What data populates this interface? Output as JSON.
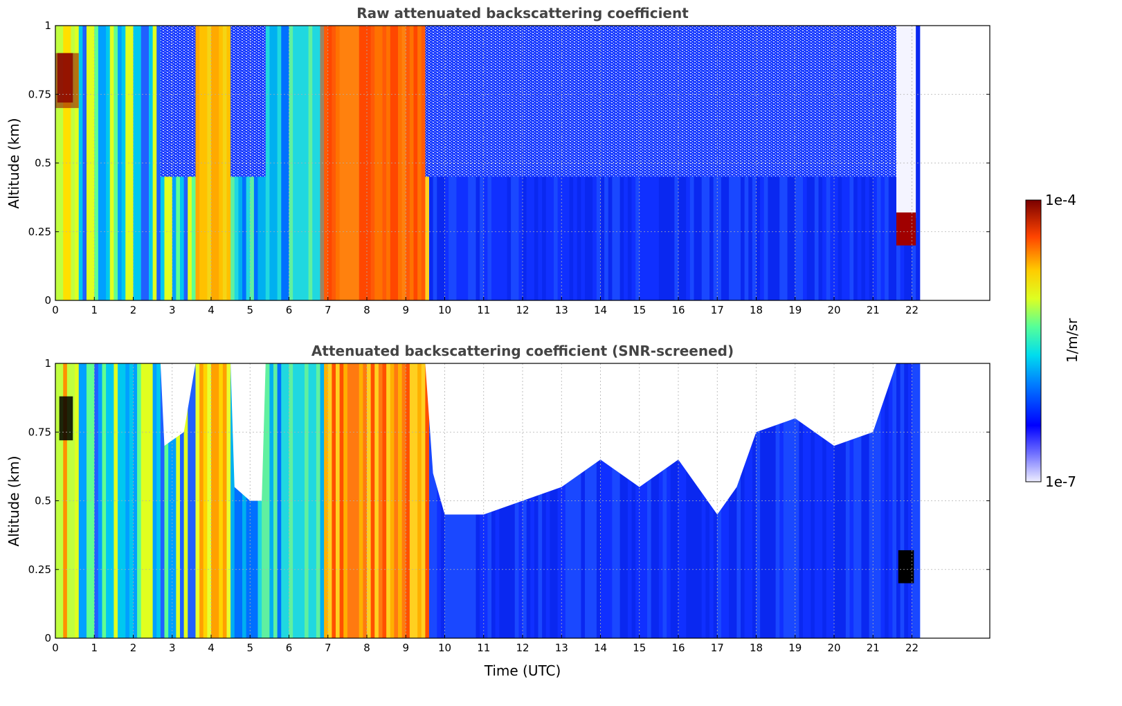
{
  "chart_data": [
    {
      "type": "heatmap",
      "title": "Raw attenuated backscattering coefficient",
      "xlabel": "",
      "ylabel": "Altitude (km)",
      "xlim": [
        0,
        24
      ],
      "ylim": [
        0,
        1
      ],
      "xticks": [
        "0",
        "1",
        "2",
        "3",
        "4",
        "5",
        "6",
        "7",
        "8",
        "9",
        "10",
        "11",
        "12",
        "13",
        "14",
        "15",
        "16",
        "17",
        "18",
        "19",
        "20",
        "21",
        "22"
      ],
      "yticks": [
        "0",
        "0.25",
        "0.5",
        "0.75",
        "1"
      ],
      "grid": true,
      "colorscale": "jet, log10 scale",
      "data_extent_x": [
        0,
        22.15
      ],
      "features": [
        {
          "x_range": [
            0,
            0.6
          ],
          "y_range": [
            0.7,
            0.9
          ],
          "log10_value": -4.0
        },
        {
          "x_range": [
            3.6,
            4.5
          ],
          "y_range": [
            0,
            1
          ],
          "log10_value": -5.0
        },
        {
          "x_range": [
            6.8,
            9.5
          ],
          "y_range": [
            0,
            1
          ],
          "log10_value": -4.6
        },
        {
          "x_range": [
            9.5,
            21.6
          ],
          "y_range": [
            0,
            1
          ],
          "log10_value": -6.4
        },
        {
          "x_range": [
            21.6,
            22.1
          ],
          "y_range": [
            0.2,
            0.3
          ],
          "log10_value": -4.0
        }
      ]
    },
    {
      "type": "heatmap",
      "title": "Attenuated backscattering coefficient (SNR-screened)",
      "xlabel": "Time (UTC)",
      "ylabel": "Altitude (km)",
      "xlim": [
        0,
        24
      ],
      "ylim": [
        0,
        1
      ],
      "xticks": [
        "0",
        "1",
        "2",
        "3",
        "4",
        "5",
        "6",
        "7",
        "8",
        "9",
        "10",
        "11",
        "12",
        "13",
        "14",
        "15",
        "16",
        "17",
        "18",
        "19",
        "20",
        "21",
        "22"
      ],
      "yticks": [
        "0",
        "0.25",
        "0.5",
        "0.75",
        "1"
      ],
      "grid": true,
      "colorscale": "jet, log10 scale, values above 1e-4 shown black, masked cells white",
      "data_extent_x": [
        0,
        22.15
      ],
      "screened_top_km": [
        [
          0,
          1
        ],
        [
          2.7,
          1
        ],
        [
          2.8,
          0.7
        ],
        [
          3.3,
          0.75
        ],
        [
          3.6,
          1
        ],
        [
          4.5,
          1
        ],
        [
          4.6,
          0.55
        ],
        [
          5.0,
          0.5
        ],
        [
          5.3,
          0.5
        ],
        [
          5.4,
          1
        ],
        [
          9.5,
          1
        ],
        [
          9.7,
          0.6
        ],
        [
          10.0,
          0.45
        ],
        [
          11.0,
          0.45
        ],
        [
          12.0,
          0.5
        ],
        [
          13.0,
          0.55
        ],
        [
          14.0,
          0.65
        ],
        [
          15.0,
          0.55
        ],
        [
          16.0,
          0.65
        ],
        [
          17.0,
          0.45
        ],
        [
          17.5,
          0.55
        ],
        [
          18.0,
          0.75
        ],
        [
          19.0,
          0.8
        ],
        [
          20.0,
          0.7
        ],
        [
          21.0,
          0.75
        ],
        [
          21.6,
          1
        ],
        [
          22.15,
          1
        ]
      ]
    }
  ],
  "colorbar": {
    "label": "1/m/sr",
    "max_label": "1e-4",
    "min_label": "1e-7",
    "log10_range": [
      -7,
      -4
    ]
  }
}
